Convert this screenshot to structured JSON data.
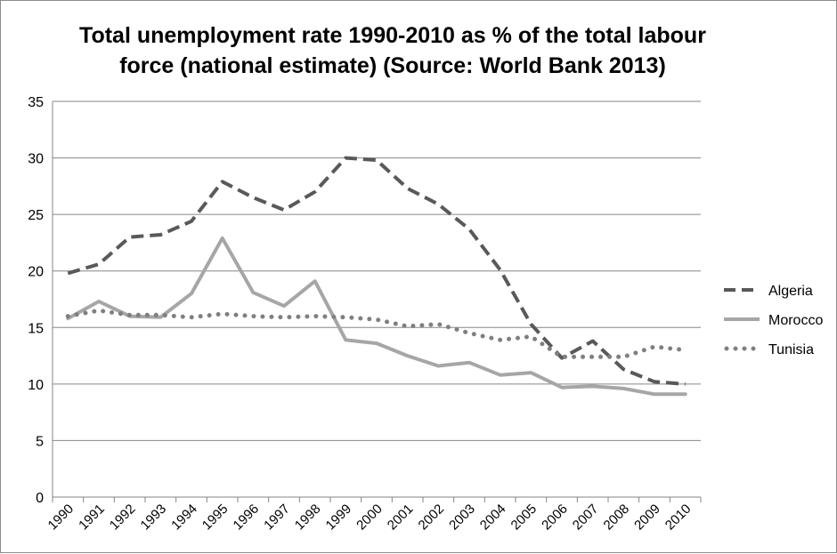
{
  "chart_data": {
    "type": "line",
    "title_lines": [
      "Total unemployment rate 1990-2010 as % of the total labour",
      "force (national estimate) (Source: World Bank 2013)"
    ],
    "xlabel": "",
    "ylabel": "",
    "ylim": [
      0,
      35
    ],
    "y_ticks": [
      0,
      5,
      10,
      15,
      20,
      25,
      30,
      35
    ],
    "grid": "horizontal",
    "legend_position": "right",
    "categories": [
      "1990",
      "1991",
      "1992",
      "1993",
      "1994",
      "1995",
      "1996",
      "1997",
      "1998",
      "1999",
      "2000",
      "2001",
      "2002",
      "2003",
      "2004",
      "2005",
      "2006",
      "2007",
      "2008",
      "2009",
      "2010"
    ],
    "series": [
      {
        "name": "Algeria",
        "style": "dashed",
        "color": "#595959",
        "values": [
          19.8,
          20.6,
          23.0,
          23.2,
          24.4,
          27.9,
          26.5,
          25.4,
          27.0,
          30.0,
          29.8,
          27.3,
          25.9,
          23.7,
          20.1,
          15.3,
          12.3,
          13.8,
          11.3,
          10.2,
          10.0
        ]
      },
      {
        "name": "Morocco",
        "style": "solid",
        "color": "#a6a6a6",
        "values": [
          15.8,
          17.3,
          16.0,
          15.9,
          18.0,
          22.9,
          18.1,
          16.9,
          19.1,
          13.9,
          13.6,
          12.5,
          11.6,
          11.9,
          10.8,
          11.0,
          9.7,
          9.8,
          9.6,
          9.1,
          9.1
        ]
      },
      {
        "name": "Tunisia",
        "style": "dotted",
        "color": "#7f7f7f",
        "values": [
          16.0,
          16.5,
          16.1,
          16.1,
          15.9,
          16.2,
          16.0,
          15.9,
          16.0,
          15.9,
          15.7,
          15.1,
          15.3,
          14.5,
          13.9,
          14.2,
          12.4,
          12.4,
          12.4,
          13.3,
          13.0
        ]
      }
    ]
  }
}
